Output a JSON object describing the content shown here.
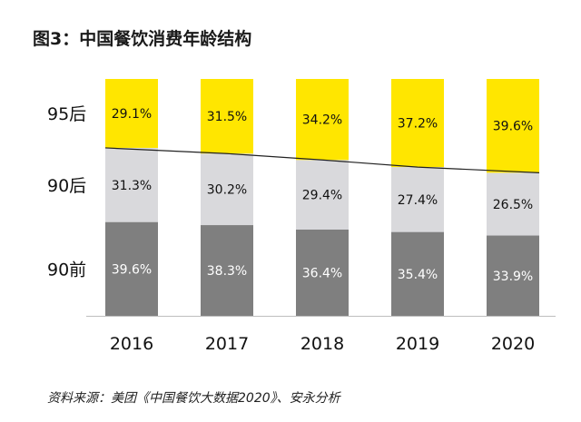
{
  "chart_data": {
    "type": "bar",
    "stacked": true,
    "title": "图3：中国餐饮消费年龄结构",
    "source": "资料来源：美团《中国餐饮大数据2020》、安永分析",
    "categories": [
      "2016",
      "2017",
      "2018",
      "2019",
      "2020"
    ],
    "series": [
      {
        "name": "90前",
        "color": "#7f7f7f",
        "labels": [
          "39.6%",
          "38.3%",
          "36.4%",
          "35.4%",
          "33.9%"
        ],
        "values": [
          39.6,
          38.3,
          36.4,
          35.4,
          33.9
        ]
      },
      {
        "name": "90后",
        "color": "#d9d9dc",
        "labels": [
          "31.3%",
          "30.2%",
          "29.4%",
          "27.4%",
          "26.5%"
        ],
        "values": [
          31.3,
          30.2,
          29.4,
          27.4,
          26.5
        ]
      },
      {
        "name": "95后",
        "color": "#ffe600",
        "labels": [
          "29.1%",
          "31.5%",
          "34.2%",
          "37.2%",
          "39.6%"
        ],
        "values": [
          29.1,
          31.5,
          34.2,
          37.2,
          39.6
        ]
      }
    ],
    "ylim": [
      0,
      100
    ],
    "trend_line": "boundary between 90后 and 95后"
  }
}
